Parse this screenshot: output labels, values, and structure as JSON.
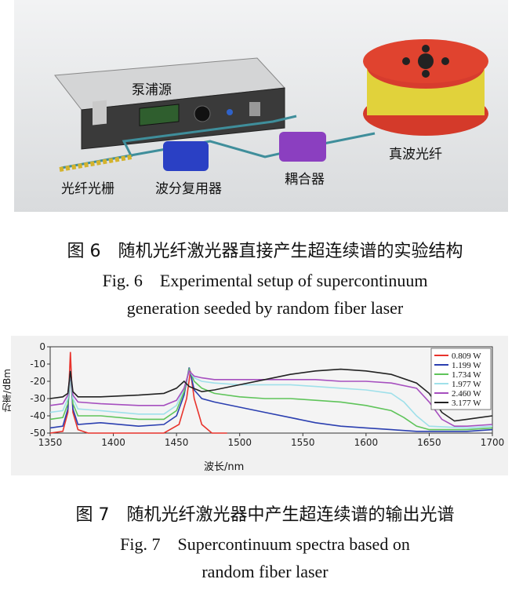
{
  "figure6": {
    "labels": {
      "pump": "泵浦源",
      "fiber_grating": "光纤光栅",
      "wdm": "波分复用器",
      "coupler": "耦合器",
      "fiber": "真波光纤"
    },
    "caption_cn": "图 6　随机光纤激光器直接产生超连续谱的实验结构",
    "caption_en_1": "Fig. 6　Experimental setup of supercontinuum",
    "caption_en_2": "generation seeded by random fiber laser"
  },
  "figure7": {
    "caption_cn": "图 7　随机光纤激光器中产生超连续谱的输出光谱",
    "caption_en_1": "Fig. 7　Supercontinuum spectra based on",
    "caption_en_2": "random fiber laser"
  },
  "chart_data": {
    "type": "line",
    "xlabel": "波长/nm",
    "ylabel": "功率/dBm",
    "xlim": [
      1350,
      1700
    ],
    "ylim": [
      -50,
      0
    ],
    "xticks": [
      1350,
      1400,
      1450,
      1500,
      1550,
      1600,
      1650,
      1700
    ],
    "yticks": [
      0,
      -10,
      -20,
      -30,
      -40,
      -50
    ],
    "legend_position": "top-right",
    "series": [
      {
        "name": "0.809 W",
        "color": "#e8332c",
        "x": [
          1350,
          1360,
          1364,
          1366,
          1368,
          1372,
          1380,
          1440,
          1452,
          1458,
          1461,
          1464,
          1470,
          1478,
          1490
        ],
        "y": [
          -50,
          -49,
          -38,
          -3,
          -38,
          -48,
          -50,
          -50,
          -45,
          -30,
          -14,
          -30,
          -45,
          -50,
          -50
        ]
      },
      {
        "name": "1.199 W",
        "color": "#2b3fb0",
        "x": [
          1350,
          1360,
          1364,
          1366,
          1368,
          1372,
          1390,
          1420,
          1440,
          1450,
          1456,
          1460,
          1464,
          1470,
          1480,
          1500,
          1520,
          1540,
          1560,
          1580,
          1600,
          1620,
          1640,
          1660,
          1680,
          1700
        ],
        "y": [
          -47,
          -46,
          -36,
          -14,
          -36,
          -45,
          -44,
          -46,
          -45,
          -40,
          -28,
          -12,
          -25,
          -30,
          -32,
          -35,
          -38,
          -41,
          -44,
          -46,
          -47,
          -48,
          -49,
          -49,
          -49,
          -48
        ]
      },
      {
        "name": "1.734 W",
        "color": "#5fc45a",
        "x": [
          1350,
          1360,
          1364,
          1366,
          1368,
          1372,
          1390,
          1420,
          1440,
          1450,
          1456,
          1460,
          1464,
          1470,
          1480,
          1500,
          1520,
          1540,
          1560,
          1580,
          1600,
          1620,
          1630,
          1640,
          1650,
          1680,
          1700
        ],
        "y": [
          -42,
          -41,
          -33,
          -14,
          -33,
          -40,
          -40,
          -42,
          -42,
          -37,
          -26,
          -13,
          -20,
          -24,
          -27,
          -29,
          -30,
          -30,
          -31,
          -32,
          -34,
          -37,
          -41,
          -46,
          -48,
          -48,
          -47
        ]
      },
      {
        "name": "1.977 W",
        "color": "#9fe0ea",
        "x": [
          1350,
          1360,
          1364,
          1366,
          1368,
          1372,
          1390,
          1420,
          1440,
          1450,
          1456,
          1460,
          1464,
          1470,
          1480,
          1500,
          1520,
          1540,
          1560,
          1580,
          1600,
          1620,
          1630,
          1640,
          1650,
          1680,
          1700
        ],
        "y": [
          -38,
          -37,
          -30,
          -14,
          -30,
          -36,
          -37,
          -39,
          -39,
          -34,
          -24,
          -14,
          -18,
          -20,
          -21,
          -22,
          -22,
          -22,
          -23,
          -24,
          -25,
          -27,
          -32,
          -40,
          -46,
          -47,
          -46
        ]
      },
      {
        "name": "2.460 W",
        "color": "#a64fbf",
        "x": [
          1350,
          1360,
          1364,
          1366,
          1368,
          1372,
          1390,
          1420,
          1440,
          1450,
          1456,
          1460,
          1464,
          1470,
          1480,
          1500,
          1520,
          1540,
          1560,
          1580,
          1600,
          1620,
          1640,
          1650,
          1660,
          1670,
          1680,
          1700
        ],
        "y": [
          -34,
          -33,
          -28,
          -14,
          -28,
          -32,
          -33,
          -34,
          -34,
          -31,
          -24,
          -14,
          -17,
          -18,
          -19,
          -19,
          -19,
          -19,
          -19,
          -20,
          -20,
          -21,
          -24,
          -32,
          -42,
          -46,
          -46,
          -45
        ]
      },
      {
        "name": "3.177 W",
        "color": "#222222",
        "x": [
          1350,
          1360,
          1364,
          1366,
          1368,
          1372,
          1390,
          1420,
          1440,
          1450,
          1456,
          1460,
          1470,
          1480,
          1500,
          1520,
          1540,
          1560,
          1580,
          1600,
          1620,
          1640,
          1650,
          1660,
          1670,
          1680,
          1690,
          1700
        ],
        "y": [
          -30,
          -29,
          -27,
          -14,
          -26,
          -29,
          -29,
          -28,
          -27,
          -24,
          -20,
          -23,
          -26,
          -25,
          -22,
          -19,
          -16,
          -14,
          -13,
          -14,
          -16,
          -21,
          -27,
          -38,
          -43,
          -42,
          -41,
          -40
        ]
      }
    ]
  }
}
